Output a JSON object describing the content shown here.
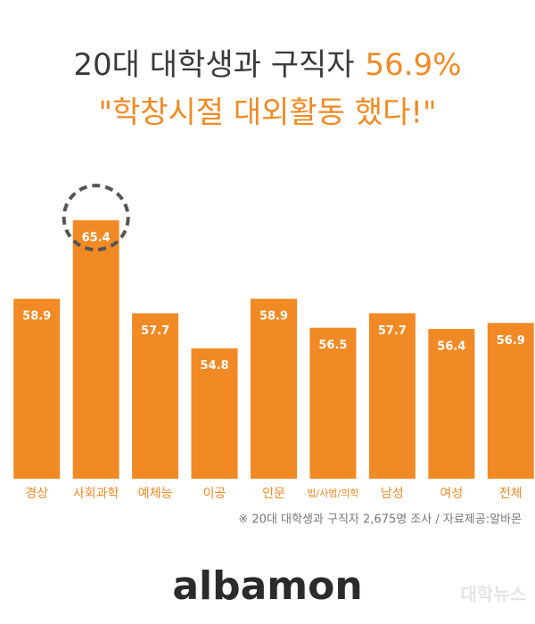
{
  "chart_data": {
    "type": "bar",
    "title": "20대 대학생과 구직자",
    "title_highlight": "56.9%",
    "subtitle": "\"학창시절 대외활동 했다!\"",
    "categories": [
      "경상",
      "사회과학",
      "예체능",
      "이공",
      "인문",
      "법/사범/의학",
      "남성",
      "여성",
      "전체"
    ],
    "values": [
      58.9,
      65.4,
      57.7,
      54.8,
      58.9,
      56.5,
      57.7,
      56.4,
      56.9
    ],
    "color": "#f18a24",
    "ylim": [
      44,
      66
    ],
    "note": "※ 20대 대학생과 구직자 2,675명 조사 / 자료제공:알바몬",
    "logo": "albamon",
    "watermark": "대학뉴스"
  }
}
